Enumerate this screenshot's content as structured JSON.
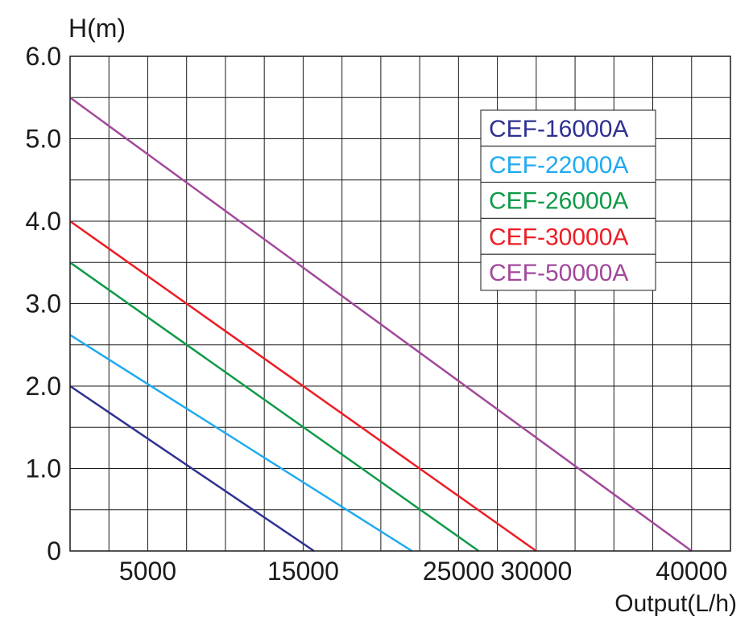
{
  "chart_data": {
    "type": "line",
    "ylabel": "H(m)",
    "xlabel": "Output(L/h)",
    "xlim": [
      0,
      42500
    ],
    "ylim": [
      0,
      6.0
    ],
    "grid": true,
    "x_grid_step": 2500,
    "y_grid_step": 0.5,
    "y_ticks": [
      {
        "value": 0,
        "label": "0"
      },
      {
        "value": 1.0,
        "label": "1.0"
      },
      {
        "value": 2.0,
        "label": "2.0"
      },
      {
        "value": 3.0,
        "label": "3.0"
      },
      {
        "value": 4.0,
        "label": "4.0"
      },
      {
        "value": 5.0,
        "label": "5.0"
      },
      {
        "value": 6.0,
        "label": "6.0"
      }
    ],
    "x_ticks": [
      {
        "value": 5000,
        "label": "5000"
      },
      {
        "value": 15000,
        "label": "15000"
      },
      {
        "value": 25000,
        "label": "25000"
      },
      {
        "value": 30000,
        "label": "30000"
      },
      {
        "value": 40000,
        "label": "40000"
      }
    ],
    "legend_position": "top-right",
    "series": [
      {
        "name": "CEF-16000A",
        "color": "#2e3192",
        "points": [
          [
            0,
            2.0
          ],
          [
            15700,
            0
          ]
        ]
      },
      {
        "name": "CEF-22000A",
        "color": "#1eaaf1",
        "points": [
          [
            0,
            2.62
          ],
          [
            22000,
            0
          ]
        ]
      },
      {
        "name": "CEF-26000A",
        "color": "#0e9a48",
        "points": [
          [
            0,
            3.5
          ],
          [
            26300,
            0
          ]
        ]
      },
      {
        "name": "CEF-30000A",
        "color": "#ed1c24",
        "points": [
          [
            0,
            4.0
          ],
          [
            30000,
            0
          ]
        ]
      },
      {
        "name": "CEF-50000A",
        "color": "#a2489a",
        "points": [
          [
            0,
            5.5
          ],
          [
            40000,
            0
          ]
        ]
      }
    ]
  }
}
